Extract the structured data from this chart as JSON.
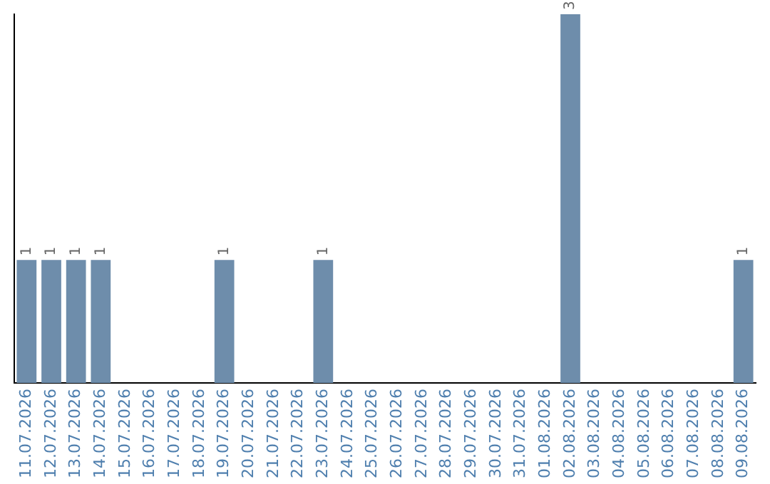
{
  "chart_data": {
    "type": "bar",
    "categories": [
      "11.07.2026",
      "12.07.2026",
      "13.07.2026",
      "14.07.2026",
      "15.07.2026",
      "16.07.2026",
      "17.07.2026",
      "18.07.2026",
      "19.07.2026",
      "20.07.2026",
      "21.07.2026",
      "22.07.2026",
      "23.07.2026",
      "24.07.2026",
      "25.07.2026",
      "26.07.2026",
      "27.07.2026",
      "28.07.2026",
      "29.07.2026",
      "30.07.2026",
      "31.07.2026",
      "01.08.2026",
      "02.08.2026",
      "03.08.2026",
      "04.08.2026",
      "05.08.2026",
      "06.08.2026",
      "07.08.2026",
      "08.08.2026",
      "09.08.2026"
    ],
    "values": [
      1,
      1,
      1,
      1,
      0,
      0,
      0,
      0,
      1,
      0,
      0,
      0,
      1,
      0,
      0,
      0,
      0,
      0,
      0,
      0,
      0,
      0,
      3,
      0,
      0,
      0,
      0,
      0,
      0,
      1
    ],
    "value_labels": [
      "1",
      "1",
      "1",
      "1",
      null,
      null,
      null,
      null,
      "1",
      null,
      null,
      null,
      "1",
      null,
      null,
      null,
      null,
      null,
      null,
      null,
      null,
      null,
      "3",
      null,
      null,
      null,
      null,
      null,
      null,
      "1"
    ],
    "color": "#6e8dab",
    "ylim": [
      0,
      3
    ],
    "tick_labels": "x",
    "grid": false,
    "legend": false
  }
}
